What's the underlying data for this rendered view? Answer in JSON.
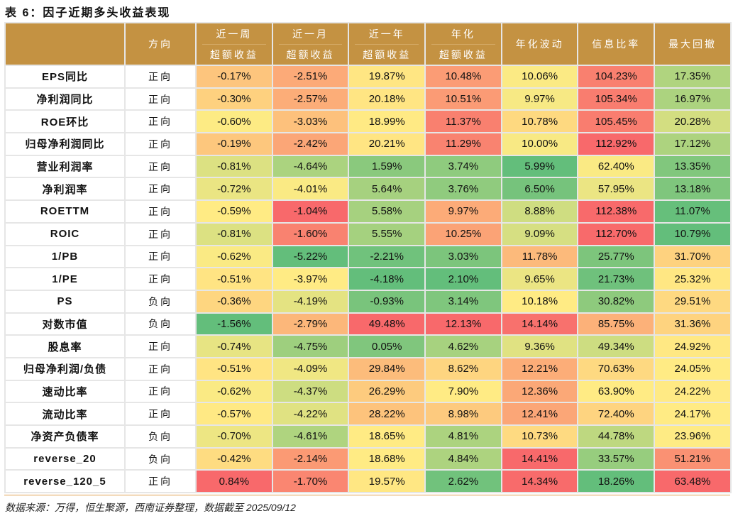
{
  "title": "表 6：因子近期多头收益表现",
  "headers": [
    [
      "",
      ""
    ],
    [
      "方向",
      ""
    ],
    [
      "近一周",
      "超额收益"
    ],
    [
      "近一月",
      "超额收益"
    ],
    [
      "近一年",
      "超额收益"
    ],
    [
      "年化",
      "超额收益"
    ],
    [
      "年化波动",
      ""
    ],
    [
      "信息比率",
      ""
    ],
    [
      "最大回撤",
      ""
    ]
  ],
  "rows": [
    [
      "EPS同比",
      "正向",
      "-0.17%",
      "-2.51%",
      "19.87%",
      "10.48%",
      "10.06%",
      "104.23%",
      "17.35%"
    ],
    [
      "净利润同比",
      "正向",
      "-0.30%",
      "-2.57%",
      "20.18%",
      "10.51%",
      "9.97%",
      "105.34%",
      "16.97%"
    ],
    [
      "ROE环比",
      "正向",
      "-0.60%",
      "-3.03%",
      "18.99%",
      "11.37%",
      "10.78%",
      "105.45%",
      "20.28%"
    ],
    [
      "归母净利润同比",
      "正向",
      "-0.19%",
      "-2.42%",
      "20.21%",
      "11.29%",
      "10.00%",
      "112.92%",
      "17.12%"
    ],
    [
      "营业利润率",
      "正向",
      "-0.81%",
      "-4.64%",
      "1.59%",
      "3.74%",
      "5.99%",
      "62.40%",
      "13.35%"
    ],
    [
      "净利润率",
      "正向",
      "-0.72%",
      "-4.01%",
      "5.64%",
      "3.76%",
      "6.50%",
      "57.95%",
      "13.18%"
    ],
    [
      "ROETTM",
      "正向",
      "-0.59%",
      "-1.04%",
      "5.58%",
      "9.97%",
      "8.88%",
      "112.38%",
      "11.07%"
    ],
    [
      "ROIC",
      "正向",
      "-0.81%",
      "-1.60%",
      "5.55%",
      "10.25%",
      "9.09%",
      "112.70%",
      "10.79%"
    ],
    [
      "1/PB",
      "正向",
      "-0.62%",
      "-5.22%",
      "-2.21%",
      "3.03%",
      "11.78%",
      "25.77%",
      "31.70%"
    ],
    [
      "1/PE",
      "正向",
      "-0.51%",
      "-3.97%",
      "-4.18%",
      "2.10%",
      "9.65%",
      "21.73%",
      "25.32%"
    ],
    [
      "PS",
      "负向",
      "-0.36%",
      "-4.19%",
      "-0.93%",
      "3.14%",
      "10.18%",
      "30.82%",
      "29.51%"
    ],
    [
      "对数市值",
      "负向",
      "-1.56%",
      "-2.79%",
      "49.48%",
      "12.13%",
      "14.14%",
      "85.75%",
      "31.36%"
    ],
    [
      "股息率",
      "正向",
      "-0.74%",
      "-4.75%",
      "0.05%",
      "4.62%",
      "9.36%",
      "49.34%",
      "24.92%"
    ],
    [
      "归母净利润/负债",
      "正向",
      "-0.51%",
      "-4.09%",
      "29.84%",
      "8.62%",
      "12.21%",
      "70.63%",
      "24.05%"
    ],
    [
      "速动比率",
      "正向",
      "-0.62%",
      "-4.37%",
      "26.29%",
      "7.90%",
      "12.36%",
      "63.90%",
      "24.22%"
    ],
    [
      "流动比率",
      "正向",
      "-0.57%",
      "-4.22%",
      "28.22%",
      "8.98%",
      "12.41%",
      "72.40%",
      "24.17%"
    ],
    [
      "净资产负债率",
      "负向",
      "-0.70%",
      "-4.61%",
      "18.65%",
      "4.81%",
      "10.73%",
      "44.78%",
      "23.96%"
    ],
    [
      "reverse_20",
      "负向",
      "-0.42%",
      "-2.14%",
      "18.68%",
      "4.84%",
      "14.41%",
      "33.57%",
      "51.21%"
    ],
    [
      "reverse_120_5",
      "正向",
      "0.84%",
      "-1.70%",
      "19.57%",
      "2.62%",
      "14.34%",
      "18.26%",
      "63.48%"
    ]
  ],
  "source": "数据来源：万得，恒生聚源，西南证券整理，数据截至 2025/09/12",
  "colors": {
    "low": "#63be7b",
    "mid": "#ffeb84",
    "high": "#f8696b",
    "header": "#c49242"
  }
}
